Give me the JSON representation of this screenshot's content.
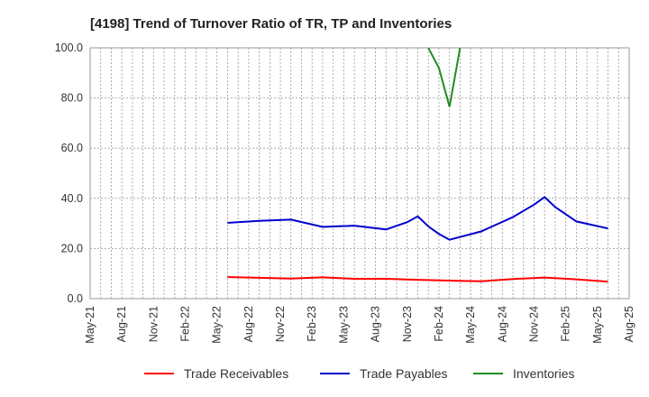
{
  "chart_data": {
    "type": "line",
    "title": "[4198]  Trend of Turnover Ratio of TR, TP and Inventories",
    "xlabel": "",
    "ylabel": "",
    "ylim": [
      0,
      100
    ],
    "yticks": [
      "0.0",
      "20.0",
      "40.0",
      "60.0",
      "80.0",
      "100.0"
    ],
    "xticks": [
      "May-21",
      "Aug-21",
      "Nov-21",
      "Feb-22",
      "May-22",
      "Aug-22",
      "Nov-22",
      "Feb-23",
      "May-23",
      "Aug-23",
      "Nov-23",
      "Feb-24",
      "May-24",
      "Aug-24",
      "Nov-24",
      "Feb-25",
      "May-25",
      "Aug-25"
    ],
    "grid": true,
    "legend_position": "bottom",
    "series": [
      {
        "name": "Trade Receivables",
        "color": "#ff0000",
        "points": [
          [
            "Jun-22",
            8.6
          ],
          [
            "Sep-22",
            8.3
          ],
          [
            "Dec-22",
            8.0
          ],
          [
            "Mar-23",
            8.5
          ],
          [
            "Jun-23",
            7.9
          ],
          [
            "Sep-23",
            7.9
          ],
          [
            "Dec-23",
            7.5
          ],
          [
            "Mar-24",
            7.2
          ],
          [
            "Jun-24",
            6.9
          ],
          [
            "Sep-24",
            7.8
          ],
          [
            "Dec-24",
            8.4
          ],
          [
            "Mar-25",
            7.7
          ],
          [
            "Jun-25",
            6.8
          ]
        ]
      },
      {
        "name": "Trade Payables",
        "color": "#0000cc",
        "points": [
          [
            "Jun-22",
            30.2
          ],
          [
            "Sep-22",
            31.0
          ],
          [
            "Dec-22",
            31.5
          ],
          [
            "Mar-23",
            28.6
          ],
          [
            "Jun-23",
            29.1
          ],
          [
            "Sep-23",
            27.6
          ],
          [
            "Nov-23",
            30.5
          ],
          [
            "Dec-23",
            32.8
          ],
          [
            "Jan-24",
            28.8
          ],
          [
            "Feb-24",
            25.8
          ],
          [
            "Mar-24",
            23.5
          ],
          [
            "Jun-24",
            26.8
          ],
          [
            "Sep-24",
            32.5
          ],
          [
            "Nov-24",
            37.5
          ],
          [
            "Dec-24",
            40.5
          ],
          [
            "Jan-25",
            36.5
          ],
          [
            "Mar-25",
            30.8
          ],
          [
            "Jun-25",
            28.0
          ]
        ]
      },
      {
        "name": "Inventories",
        "color": "#228b22",
        "points": [
          [
            "Jan-24",
            100.0
          ],
          [
            "Feb-24",
            92.0
          ],
          [
            "Mar-24",
            76.5
          ],
          [
            "Apr-24",
            100.0
          ]
        ]
      }
    ]
  }
}
